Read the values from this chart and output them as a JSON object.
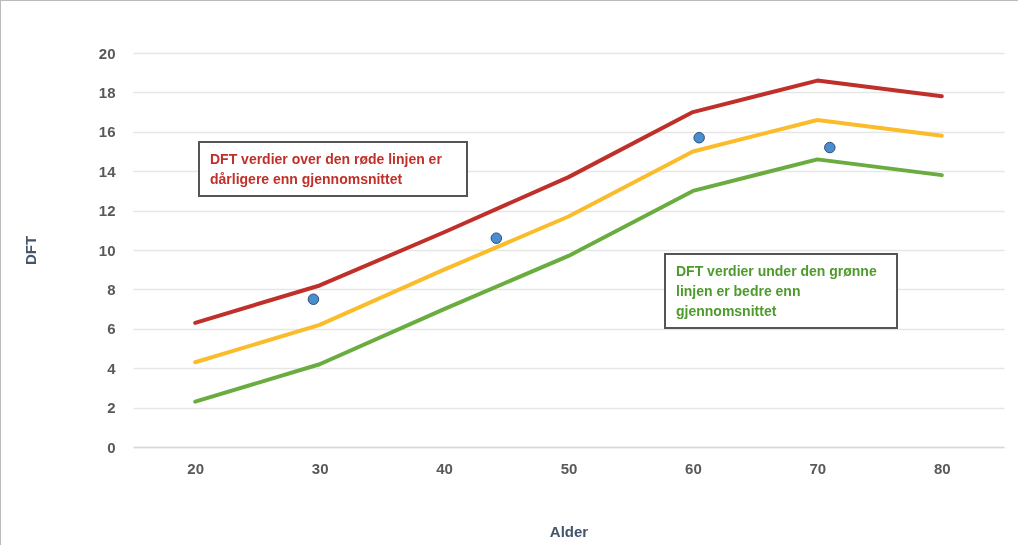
{
  "chart_data": {
    "type": "line",
    "xlabel": "Alder",
    "ylabel": "DFT",
    "x": [
      20,
      30,
      40,
      50,
      60,
      70,
      80
    ],
    "series": [
      {
        "color": "#c0302a",
        "values": [
          6.3,
          8.2,
          10.9,
          13.7,
          17.0,
          18.6,
          17.8
        ]
      },
      {
        "color": "#fbbc2c",
        "values": [
          4.3,
          6.2,
          9.0,
          11.7,
          15.0,
          16.6,
          15.8
        ]
      },
      {
        "color": "#6aac3f",
        "values": [
          2.3,
          4.2,
          7.0,
          9.7,
          13.0,
          14.6,
          13.8
        ]
      },
      {
        "type": "scatter",
        "marker": "circle",
        "color": "#4a8ed0",
        "x": [
          29.5,
          44.2,
          60.5,
          71
        ],
        "values": [
          7.5,
          10.6,
          15.7,
          15.2
        ]
      }
    ],
    "xlim": [
      15,
      85
    ],
    "xticks": [
      20,
      30,
      40,
      50,
      60,
      70,
      80
    ],
    "ylim": [
      0,
      20
    ],
    "yticks": [
      0,
      2,
      4,
      6,
      8,
      10,
      12,
      14,
      16,
      18,
      20
    ],
    "grid": "y",
    "line_style": "solid",
    "annotations": [
      "DFT verdier over den røde linjen er dårligere enn gjennomsnittet",
      "DFT verdier under den grønne linjen er bedre enn gjennomsnittet"
    ]
  }
}
